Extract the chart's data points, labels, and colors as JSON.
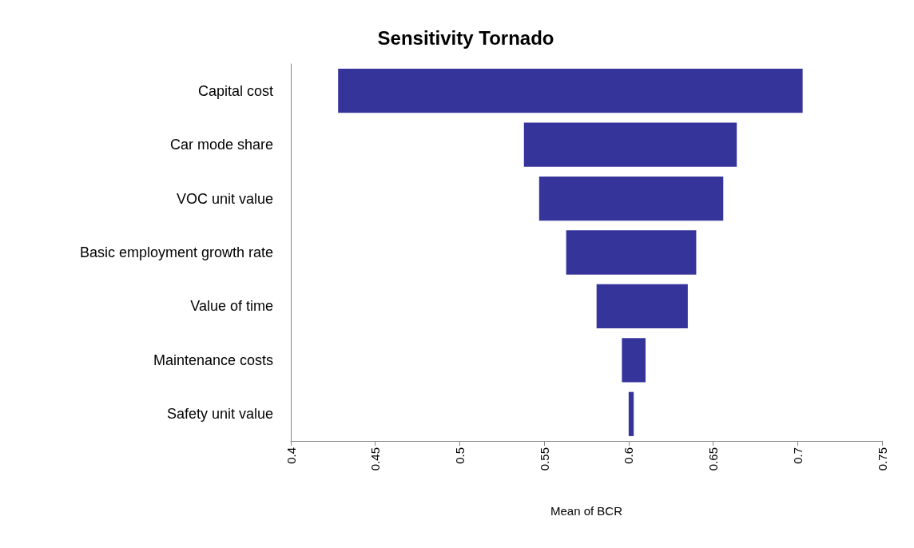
{
  "chart_data": {
    "type": "bar",
    "orientation": "horizontal",
    "title": "Sensitivity Tornado",
    "xlabel": "Mean of BCR",
    "categories": [
      "Capital cost",
      "Car mode share",
      "VOC unit value",
      "Basic employment growth rate",
      "Value of time",
      "Maintenance costs",
      "Safety unit value"
    ],
    "base": [
      0.428,
      0.538,
      0.547,
      0.563,
      0.581,
      0.596,
      0.6
    ],
    "values": [
      0.275,
      0.126,
      0.109,
      0.077,
      0.054,
      0.014,
      0.003
    ],
    "color": "#35349b",
    "xlim": [
      0.4,
      0.75
    ],
    "xticks": [
      0.4,
      0.45,
      0.5,
      0.55,
      0.6,
      0.65,
      0.7,
      0.75
    ],
    "grid": false
  }
}
